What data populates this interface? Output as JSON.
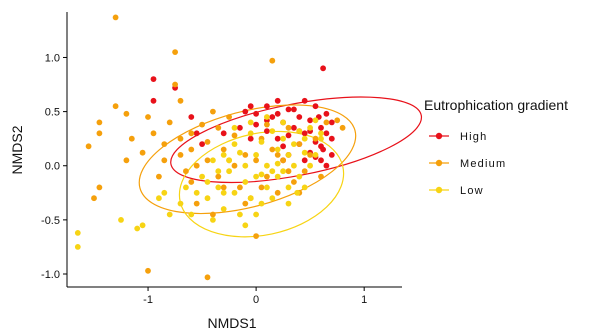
{
  "chart_data": {
    "type": "scatter",
    "xlabel": "NMDS1",
    "ylabel": "NMDS2",
    "xlim": [
      -1.75,
      1.35
    ],
    "ylim": [
      -1.12,
      1.42
    ],
    "x_ticks": [
      -1,
      0,
      1
    ],
    "x_tick_labels": [
      "-1",
      "0",
      "1"
    ],
    "y_ticks": [
      -1.0,
      -0.5,
      0.0,
      0.5,
      1.0
    ],
    "y_tick_labels": [
      "-1.0",
      "-0.5",
      "0.0",
      "0.5",
      "1.0"
    ],
    "grid": false,
    "legend": {
      "title": "Eutrophication gradient",
      "position": "right",
      "entries": [
        "High",
        "Medium",
        "Low"
      ]
    },
    "series": [
      {
        "name": "High",
        "color": "#e8111a",
        "ellipse": {
          "cx": 0.37,
          "cy": 0.24,
          "rx": 1.18,
          "ry": 0.33,
          "angle_deg": -11
        },
        "points": [
          [
            -0.95,
            0.8
          ],
          [
            -0.75,
            0.72
          ],
          [
            -0.95,
            0.6
          ],
          [
            -0.6,
            0.45
          ],
          [
            -0.55,
            0.3
          ],
          [
            -0.3,
            0.3
          ],
          [
            -0.5,
            0.2
          ],
          [
            -0.1,
            0.5
          ],
          [
            -0.05,
            0.55
          ],
          [
            0.0,
            0.48
          ],
          [
            0.0,
            0.38
          ],
          [
            0.1,
            0.55
          ],
          [
            0.1,
            0.32
          ],
          [
            0.15,
            0.45
          ],
          [
            -0.05,
            0.25
          ],
          [
            0.2,
            0.6
          ],
          [
            0.2,
            0.25
          ],
          [
            0.25,
            0.4
          ],
          [
            0.25,
            0.18
          ],
          [
            0.3,
            0.52
          ],
          [
            0.3,
            0.1
          ],
          [
            0.35,
            0.35
          ],
          [
            0.4,
            0.45
          ],
          [
            0.4,
            0.2
          ],
          [
            0.45,
            0.6
          ],
          [
            0.45,
            0.3
          ],
          [
            0.5,
            0.12
          ],
          [
            0.5,
            0.42
          ],
          [
            0.55,
            0.55
          ],
          [
            0.55,
            0.22
          ],
          [
            0.6,
            0.35
          ],
          [
            0.6,
            0.05
          ],
          [
            0.6,
            0.18
          ],
          [
            0.62,
            0.9
          ],
          [
            0.65,
            0.48
          ],
          [
            0.65,
            0.3
          ],
          [
            0.65,
            0.0
          ],
          [
            0.7,
            0.4
          ],
          [
            0.7,
            0.25
          ],
          [
            0.7,
            0.1
          ],
          [
            0.55,
            0.08
          ],
          [
            0.45,
            0.05
          ],
          [
            0.35,
            0.52
          ],
          [
            0.2,
            0.48
          ],
          [
            0.1,
            0.42
          ],
          [
            -0.15,
            0.35
          ],
          [
            0.5,
            0.32
          ],
          [
            0.58,
            0.45
          ],
          [
            0.4,
            0.32
          ],
          [
            0.3,
            0.28
          ],
          [
            0.62,
            0.15
          ],
          [
            0.25,
            0.05
          ]
        ]
      },
      {
        "name": "Medium",
        "color": "#f5a00c",
        "ellipse": {
          "cx": -0.08,
          "cy": 0.06,
          "rx": 1.03,
          "ry": 0.44,
          "angle_deg": -15
        },
        "points": [
          [
            -1.3,
            1.37
          ],
          [
            -0.75,
            1.05
          ],
          [
            -0.75,
            0.75
          ],
          [
            -1.3,
            0.55
          ],
          [
            -1.45,
            0.4
          ],
          [
            -1.45,
            0.3
          ],
          [
            -1.55,
            0.18
          ],
          [
            -1.2,
            0.48
          ],
          [
            -1.15,
            0.25
          ],
          [
            -1.05,
            0.12
          ],
          [
            -1.2,
            0.05
          ],
          [
            -1.45,
            -0.2
          ],
          [
            -1.5,
            -0.3
          ],
          [
            -1.0,
            0.45
          ],
          [
            -0.95,
            0.3
          ],
          [
            -0.85,
            0.2
          ],
          [
            -0.85,
            0.05
          ],
          [
            -0.9,
            -0.1
          ],
          [
            -0.7,
            0.6
          ],
          [
            -0.7,
            0.25
          ],
          [
            -0.7,
            0.1
          ],
          [
            -0.65,
            -0.05
          ],
          [
            -0.6,
            0.15
          ],
          [
            -0.5,
            0.38
          ],
          [
            -0.55,
            0.0
          ],
          [
            -0.45,
            0.22
          ],
          [
            -0.45,
            0.05
          ],
          [
            -0.4,
            0.5
          ],
          [
            -0.35,
            -0.1
          ],
          [
            -0.3,
            0.15
          ],
          [
            -0.25,
            0.45
          ],
          [
            -0.2,
            0.0
          ],
          [
            -0.2,
            0.28
          ],
          [
            -0.15,
            -0.2
          ],
          [
            -0.1,
            0.1
          ],
          [
            -0.05,
            -0.3
          ],
          [
            0.0,
            0.05
          ],
          [
            0.0,
            -0.65
          ],
          [
            0.05,
            0.25
          ],
          [
            0.1,
            -0.1
          ],
          [
            0.15,
            0.15
          ],
          [
            0.2,
            -0.25
          ],
          [
            0.25,
            0.05
          ],
          [
            0.3,
            0.35
          ],
          [
            0.35,
            -0.15
          ],
          [
            0.4,
            0.2
          ],
          [
            0.45,
            -0.05
          ],
          [
            0.5,
            0.1
          ],
          [
            0.55,
            0.25
          ],
          [
            0.6,
            -0.1
          ],
          [
            0.65,
            0.4
          ],
          [
            0.75,
            0.42
          ],
          [
            0.8,
            0.35
          ],
          [
            0.15,
            0.97
          ],
          [
            -0.55,
            -0.35
          ],
          [
            -0.4,
            -0.45
          ],
          [
            -1.0,
            -0.97
          ],
          [
            -0.45,
            -1.03
          ],
          [
            -0.3,
            -0.2
          ],
          [
            0.1,
            0.38
          ],
          [
            -0.1,
            -0.35
          ],
          [
            -0.25,
            0.05
          ],
          [
            -0.6,
            -0.15
          ],
          [
            0.3,
            -0.05
          ],
          [
            0.05,
            -0.2
          ],
          [
            -0.8,
            0.4
          ],
          [
            -0.6,
            0.3
          ],
          [
            -0.35,
            0.35
          ],
          [
            0.2,
            0.1
          ],
          [
            0.4,
            -0.25
          ]
        ]
      },
      {
        "name": "Low",
        "color": "#f7d414",
        "ellipse": {
          "cx": 0.05,
          "cy": -0.17,
          "rx": 0.77,
          "ry": 0.47,
          "angle_deg": -12
        },
        "points": [
          [
            -1.65,
            -0.62
          ],
          [
            -1.65,
            -0.75
          ],
          [
            -1.25,
            -0.5
          ],
          [
            -1.1,
            -0.58
          ],
          [
            -1.05,
            -0.55
          ],
          [
            -0.9,
            -0.3
          ],
          [
            -0.85,
            -0.25
          ],
          [
            -0.8,
            -0.45
          ],
          [
            -0.7,
            -0.35
          ],
          [
            -0.65,
            -0.2
          ],
          [
            -0.6,
            -0.45
          ],
          [
            -0.55,
            -0.25
          ],
          [
            -0.5,
            -0.1
          ],
          [
            -0.45,
            -0.3
          ],
          [
            -0.4,
            -0.5
          ],
          [
            -0.4,
            0.05
          ],
          [
            -0.35,
            -0.2
          ],
          [
            -0.3,
            -0.4
          ],
          [
            -0.3,
            0.1
          ],
          [
            -0.25,
            -0.05
          ],
          [
            -0.2,
            -0.25
          ],
          [
            -0.2,
            0.2
          ],
          [
            -0.15,
            -0.45
          ],
          [
            -0.1,
            0.0
          ],
          [
            -0.1,
            -0.15
          ],
          [
            -0.05,
            0.3
          ],
          [
            -0.05,
            -0.3
          ],
          [
            0.0,
            0.1
          ],
          [
            0.0,
            -0.1
          ],
          [
            0.05,
            -0.35
          ],
          [
            0.05,
            0.22
          ],
          [
            0.1,
            0.0
          ],
          [
            0.1,
            -0.2
          ],
          [
            0.15,
            -0.3
          ],
          [
            0.15,
            0.32
          ],
          [
            0.2,
            -0.1
          ],
          [
            0.2,
            0.15
          ],
          [
            0.25,
            0.25
          ],
          [
            0.25,
            -0.05
          ],
          [
            0.3,
            0.1
          ],
          [
            0.3,
            -0.2
          ],
          [
            0.35,
            0.2
          ],
          [
            0.35,
            0.0
          ],
          [
            0.4,
            0.32
          ],
          [
            0.4,
            -0.1
          ],
          [
            0.45,
            0.12
          ],
          [
            0.45,
            0.25
          ],
          [
            0.5,
            0.0
          ],
          [
            0.5,
            0.35
          ],
          [
            0.55,
            0.1
          ],
          [
            0.55,
            0.42
          ],
          [
            0.6,
            0.25
          ],
          [
            -0.05,
            0.4
          ],
          [
            0.1,
            0.45
          ],
          [
            -0.2,
            0.35
          ],
          [
            -0.35,
            -0.05
          ],
          [
            -0.25,
            0.05
          ],
          [
            0.2,
            0.02
          ],
          [
            0.0,
            -0.45
          ],
          [
            -0.1,
            -0.55
          ],
          [
            0.3,
            -0.35
          ],
          [
            -0.45,
            -0.15
          ],
          [
            0.15,
            -0.05
          ],
          [
            0.38,
            -0.25
          ],
          [
            0.05,
            -0.08
          ],
          [
            -0.15,
            0.12
          ],
          [
            0.25,
            0.4
          ],
          [
            -0.3,
            -0.25
          ],
          [
            0.45,
            -0.2
          ],
          [
            0.6,
            0.3
          ]
        ]
      }
    ]
  }
}
